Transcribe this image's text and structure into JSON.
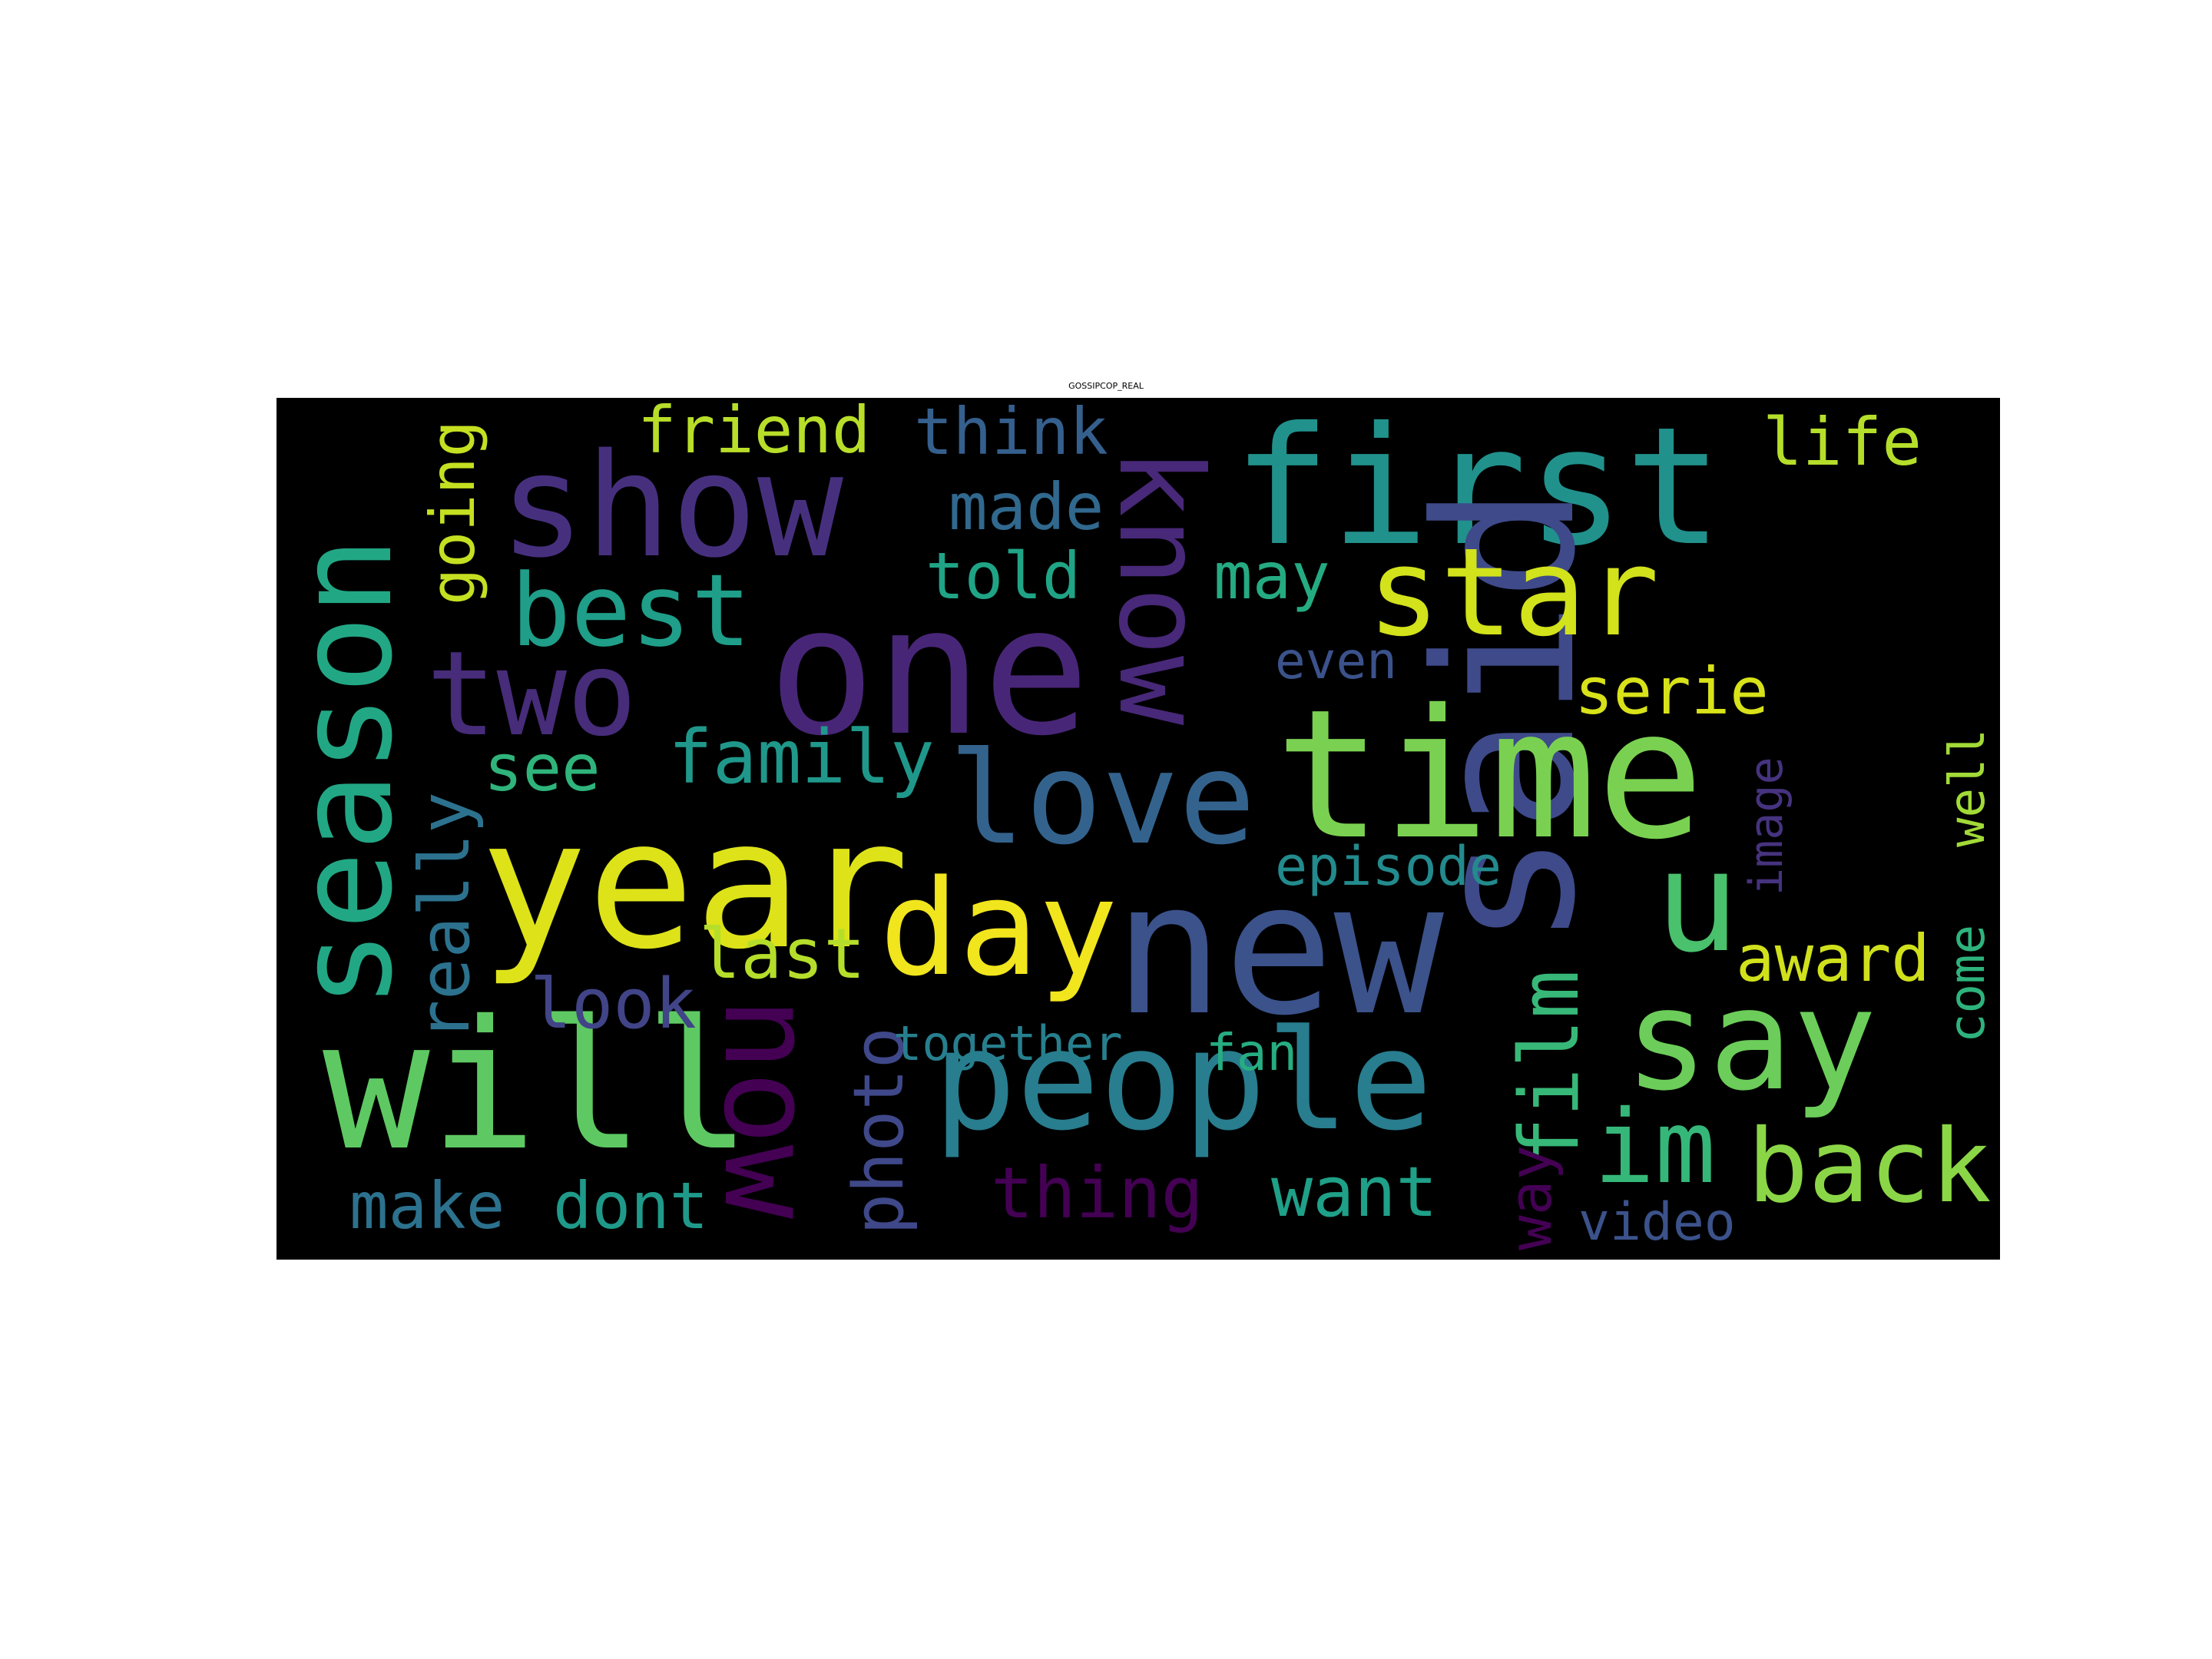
{
  "title": "GOSSIPCOP_REAL",
  "background_color": "#000000",
  "words": [
    {
      "text": "show",
      "color": "#46307e"
    },
    {
      "text": "first",
      "color": "#21918c"
    },
    {
      "text": "said",
      "color": "#3e4a89"
    },
    {
      "text": "season",
      "color": "#22a785"
    },
    {
      "text": "one",
      "color": "#482677"
    },
    {
      "text": "know",
      "color": "#482878"
    },
    {
      "text": "star",
      "color": "#d2e21b"
    },
    {
      "text": "time",
      "color": "#7ad151"
    },
    {
      "text": "year",
      "color": "#dde318"
    },
    {
      "text": "new",
      "color": "#3b528b"
    },
    {
      "text": "two",
      "color": "#472c7a"
    },
    {
      "text": "best",
      "color": "#1f9e89"
    },
    {
      "text": "love",
      "color": "#33638d"
    },
    {
      "text": "day",
      "color": "#f1e51d"
    },
    {
      "text": "will",
      "color": "#5ec962"
    },
    {
      "text": "people",
      "color": "#287d8e"
    },
    {
      "text": "say",
      "color": "#6ccd5a"
    },
    {
      "text": "u",
      "color": "#4ac16d"
    },
    {
      "text": "im",
      "color": "#35b779"
    },
    {
      "text": "back",
      "color": "#8bd646"
    },
    {
      "text": "now",
      "color": "#440154"
    },
    {
      "text": "film",
      "color": "#37b878"
    },
    {
      "text": "friend",
      "color": "#b8de29"
    },
    {
      "text": "think",
      "color": "#355f8d"
    },
    {
      "text": "going",
      "color": "#c5e021"
    },
    {
      "text": "life",
      "color": "#b5de2b"
    },
    {
      "text": "made",
      "color": "#31688e"
    },
    {
      "text": "told",
      "color": "#20a486"
    },
    {
      "text": "may",
      "color": "#25ab82"
    },
    {
      "text": "even",
      "color": "#3b528b"
    },
    {
      "text": "serie",
      "color": "#d8e219"
    },
    {
      "text": "see",
      "color": "#2fb47c"
    },
    {
      "text": "family",
      "color": "#1f988b"
    },
    {
      "text": "really",
      "color": "#2c728e"
    },
    {
      "text": "episode",
      "color": "#238a8d"
    },
    {
      "text": "image",
      "color": "#46337f"
    },
    {
      "text": "well",
      "color": "#a2da37"
    },
    {
      "text": "last",
      "color": "#b5de2b"
    },
    {
      "text": "award",
      "color": "#d0e11c"
    },
    {
      "text": "look",
      "color": "#414487"
    },
    {
      "text": "photo",
      "color": "#3f4889"
    },
    {
      "text": "together",
      "color": "#277f8e"
    },
    {
      "text": "fan",
      "color": "#26ad81"
    },
    {
      "text": "come",
      "color": "#2eb37c"
    },
    {
      "text": "way",
      "color": "#440154"
    },
    {
      "text": "thing",
      "color": "#440154"
    },
    {
      "text": "want",
      "color": "#1fa088"
    },
    {
      "text": "make",
      "color": "#2c728e"
    },
    {
      "text": "dont",
      "color": "#1f9a8a"
    },
    {
      "text": "video",
      "color": "#3b528b"
    }
  ]
}
